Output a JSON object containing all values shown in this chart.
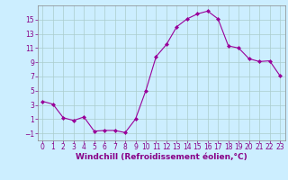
{
  "x": [
    0,
    1,
    2,
    3,
    4,
    5,
    6,
    7,
    8,
    9,
    10,
    11,
    12,
    13,
    14,
    15,
    16,
    17,
    18,
    19,
    20,
    21,
    22,
    23
  ],
  "y": [
    3.5,
    3.1,
    1.2,
    0.8,
    1.3,
    -0.7,
    -0.6,
    -0.6,
    -0.9,
    1.0,
    5.0,
    9.8,
    11.5,
    14.0,
    15.1,
    15.8,
    16.2,
    15.1,
    11.3,
    11.0,
    9.5,
    9.1,
    9.2,
    7.1
  ],
  "line_color": "#990099",
  "marker": "D",
  "marker_size": 2.0,
  "bg_color": "#cceeff",
  "grid_color": "#aacccc",
  "axis_color": "#888888",
  "xlabel": "Windchill (Refroidissement éolien,°C)",
  "xlabel_color": "#880088",
  "tick_color": "#880088",
  "ylim": [
    -2,
    17
  ],
  "yticks": [
    -1,
    1,
    3,
    5,
    7,
    9,
    11,
    13,
    15
  ],
  "xticks": [
    0,
    1,
    2,
    3,
    4,
    5,
    6,
    7,
    8,
    9,
    10,
    11,
    12,
    13,
    14,
    15,
    16,
    17,
    18,
    19,
    20,
    21,
    22,
    23
  ],
  "xlim": [
    -0.5,
    23.5
  ],
  "tick_fontsize": 5.5,
  "xlabel_fontsize": 6.5
}
